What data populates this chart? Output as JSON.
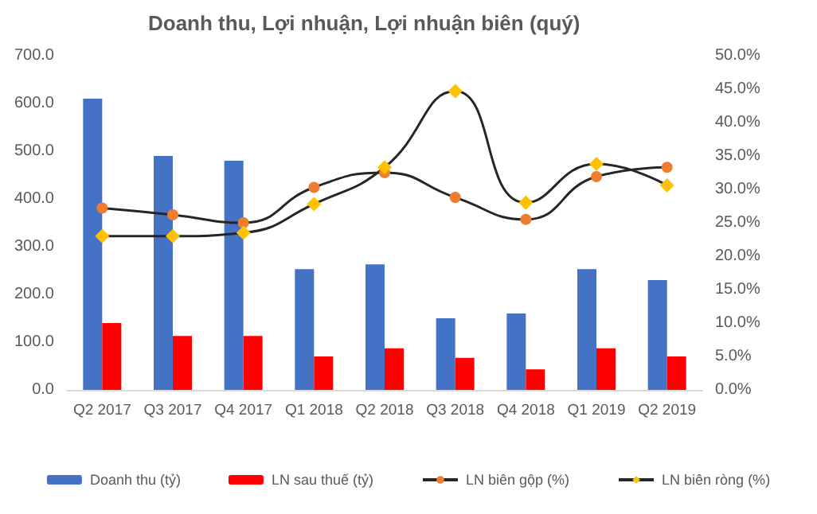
{
  "chart_data": {
    "type": "bar",
    "title": "Doanh thu, Lợi nhuận, Lợi nhuận biên (quý)",
    "categories": [
      "Q2 2017",
      "Q3 2017",
      "Q4 2017",
      "Q1 2018",
      "Q2 2018",
      "Q3 2018",
      "Q4 2018",
      "Q1 2019",
      "Q2 2019"
    ],
    "series": [
      {
        "name": "Doanh thu (tỷ)",
        "color": "#4472c4",
        "values": [
          610,
          490,
          480,
          253,
          263,
          150,
          160,
          253,
          230
        ]
      },
      {
        "name": "LN sau thuế (tỷ)",
        "color": "#ff0000",
        "values": [
          140,
          113,
          113,
          70,
          87,
          67,
          43,
          87,
          70
        ]
      },
      {
        "name": "LN biên gộp (%)",
        "type": "line",
        "axis": "y2",
        "marker": "circle",
        "color": "#ed7d31",
        "values": [
          27.2,
          26.2,
          25.0,
          30.3,
          32.5,
          28.8,
          25.5,
          31.9,
          33.3
        ]
      },
      {
        "name": "LN biên ròng (%)",
        "type": "line",
        "axis": "y2",
        "marker": "diamond",
        "color": "#ffc000",
        "values": [
          23.0,
          23.0,
          23.5,
          27.8,
          33.3,
          44.7,
          28.0,
          33.8,
          30.6
        ]
      }
    ],
    "ylim": [
      0,
      700
    ],
    "yticks": [
      {
        "value": 0,
        "label": "0.0"
      },
      {
        "value": 100,
        "label": "100.0"
      },
      {
        "value": 200,
        "label": "200.0"
      },
      {
        "value": 300,
        "label": "300.0"
      },
      {
        "value": 400,
        "label": "400.0"
      },
      {
        "value": 500,
        "label": "500.0"
      },
      {
        "value": 600,
        "label": "600.0"
      },
      {
        "value": 700,
        "label": "700.0"
      }
    ],
    "y2lim": [
      0,
      50
    ],
    "y2ticks": [
      {
        "value": 0,
        "label": "0.0%"
      },
      {
        "value": 5,
        "label": "5.0%"
      },
      {
        "value": 10,
        "label": "10.0%"
      },
      {
        "value": 15,
        "label": "15.0%"
      },
      {
        "value": 20,
        "label": "20.0%"
      },
      {
        "value": 25,
        "label": "25.0%"
      },
      {
        "value": 30,
        "label": "30.0%"
      },
      {
        "value": 35,
        "label": "35.0%"
      },
      {
        "value": 40,
        "label": "40.0%"
      },
      {
        "value": 45,
        "label": "45.0%"
      },
      {
        "value": 50,
        "label": "50.0%"
      }
    ],
    "grid": false,
    "legend": "bottom"
  }
}
